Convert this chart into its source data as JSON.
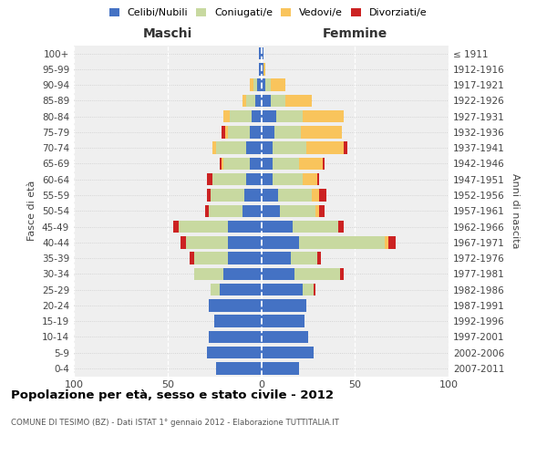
{
  "age_groups": [
    "0-4",
    "5-9",
    "10-14",
    "15-19",
    "20-24",
    "25-29",
    "30-34",
    "35-39",
    "40-44",
    "45-49",
    "50-54",
    "55-59",
    "60-64",
    "65-69",
    "70-74",
    "75-79",
    "80-84",
    "85-89",
    "90-94",
    "95-99",
    "100+"
  ],
  "birth_years": [
    "2007-2011",
    "2002-2006",
    "1997-2001",
    "1992-1996",
    "1987-1991",
    "1982-1986",
    "1977-1981",
    "1972-1976",
    "1967-1971",
    "1962-1966",
    "1957-1961",
    "1952-1956",
    "1947-1951",
    "1942-1946",
    "1937-1941",
    "1932-1936",
    "1927-1931",
    "1922-1926",
    "1917-1921",
    "1912-1916",
    "≤ 1911"
  ],
  "maschi_celibi": [
    24,
    29,
    28,
    25,
    28,
    22,
    20,
    18,
    18,
    18,
    10,
    9,
    8,
    6,
    8,
    6,
    5,
    3,
    2,
    1,
    1
  ],
  "maschi_coniugati": [
    0,
    0,
    0,
    0,
    0,
    5,
    16,
    18,
    22,
    26,
    18,
    18,
    18,
    14,
    16,
    12,
    12,
    5,
    2,
    0,
    0
  ],
  "maschi_vedovi": [
    0,
    0,
    0,
    0,
    0,
    0,
    0,
    0,
    0,
    0,
    0,
    0,
    0,
    1,
    2,
    1,
    3,
    2,
    2,
    0,
    0
  ],
  "maschi_divorziati": [
    0,
    0,
    0,
    0,
    0,
    0,
    0,
    2,
    3,
    3,
    2,
    2,
    3,
    1,
    0,
    2,
    0,
    0,
    0,
    0,
    0
  ],
  "femmine_celibi": [
    20,
    28,
    25,
    23,
    24,
    22,
    18,
    16,
    20,
    17,
    10,
    9,
    6,
    6,
    6,
    7,
    8,
    5,
    2,
    1,
    1
  ],
  "femmine_coniugati": [
    0,
    0,
    0,
    0,
    0,
    6,
    24,
    14,
    46,
    24,
    19,
    18,
    16,
    14,
    18,
    14,
    14,
    8,
    3,
    0,
    0
  ],
  "femmine_vedovi": [
    0,
    0,
    0,
    0,
    0,
    0,
    0,
    0,
    2,
    0,
    2,
    4,
    8,
    13,
    20,
    22,
    22,
    14,
    8,
    1,
    0
  ],
  "femmine_divorziati": [
    0,
    0,
    0,
    0,
    0,
    1,
    2,
    2,
    4,
    3,
    3,
    4,
    1,
    1,
    2,
    0,
    0,
    0,
    0,
    0,
    0
  ],
  "colors": {
    "celibi": "#4472c4",
    "coniugati": "#c8d9a0",
    "vedovi": "#f9c45c",
    "divorziati": "#cc2222"
  },
  "xlim": 100,
  "title": "Popolazione per età, sesso e stato civile - 2012",
  "subtitle": "COMUNE DI TESIMO (BZ) - Dati ISTAT 1° gennaio 2012 - Elaborazione TUTTITALIA.IT",
  "ylabel_left": "Fasce di età",
  "ylabel_right": "Anni di nascita",
  "xlabel_maschi": "Maschi",
  "xlabel_femmine": "Femmine",
  "bg_color": "#efefef",
  "grid_color": "#cccccc"
}
